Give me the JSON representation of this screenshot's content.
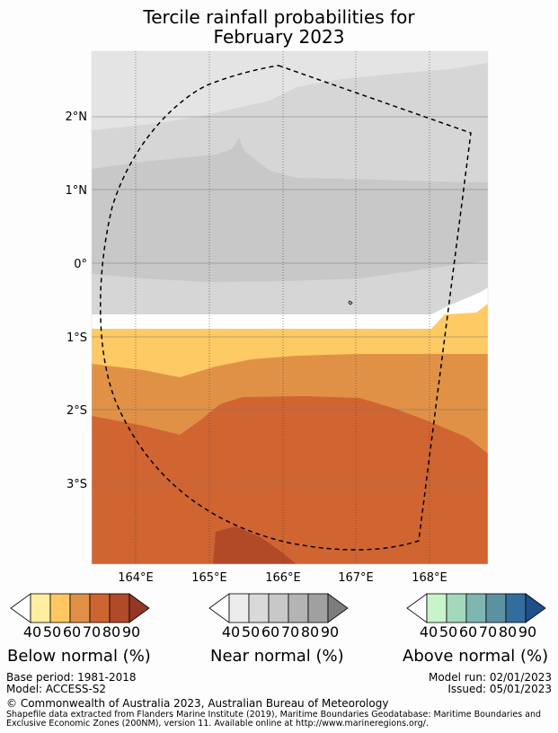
{
  "title": {
    "line1": "Tercile rainfall probabilities for",
    "line2": "February 2023"
  },
  "map": {
    "lon_ticks": [
      "164°E",
      "165°E",
      "166°E",
      "167°E",
      "168°E"
    ],
    "lat_ticks": [
      "2°N",
      "1°N",
      "0°",
      "1°S",
      "2°S",
      "3°S"
    ],
    "zones": {
      "near_light": "#e4e4e4",
      "near_mid": "#d6d6d6",
      "near_dark": "#c8c8c8",
      "below_40": "#fdca63",
      "below_50": "#e19146",
      "below_60": "#d06532",
      "below_70": "#b24a28"
    }
  },
  "legends": {
    "below": {
      "label": "Below normal (%)",
      "ticks": [
        "40",
        "50",
        "60",
        "70",
        "80",
        "90"
      ],
      "colors": [
        "#ffffff",
        "#ffeda0",
        "#fec762",
        "#e09046",
        "#cc6532",
        "#b04a28",
        "#933826"
      ]
    },
    "near": {
      "label": "Near normal (%)",
      "ticks": [
        "40",
        "50",
        "60",
        "70",
        "80",
        "90"
      ],
      "colors": [
        "#ffffff",
        "#ececec",
        "#d9d9d9",
        "#c8c8c8",
        "#b4b4b4",
        "#a0a0a0",
        "#7c7c7c"
      ]
    },
    "above": {
      "label": "Above normal (%)",
      "ticks": [
        "40",
        "50",
        "60",
        "70",
        "80",
        "90"
      ],
      "colors": [
        "#ffffff",
        "#c9f3c9",
        "#a3d8bd",
        "#7fb6b2",
        "#5b92a2",
        "#336d9e",
        "#1f4f8a"
      ]
    }
  },
  "footer": {
    "base_period": "Base period: 1981-2018",
    "model": "Model: ACCESS-S2",
    "model_run": "Model run: 02/01/2023",
    "issued": "Issued: 05/01/2023",
    "copyright": "© Commonwealth of Australia 2023, Australian Bureau of Meteorology",
    "shapefile_1": "Shapefile data extracted from Flanders Marine Institute (2019), Maritime Boundaries Geodatabase: Maritime Boundaries and",
    "shapefile_2": "Exclusive Economic Zones (200NM), version 11. Available online at http://www.marineregions.org/."
  }
}
